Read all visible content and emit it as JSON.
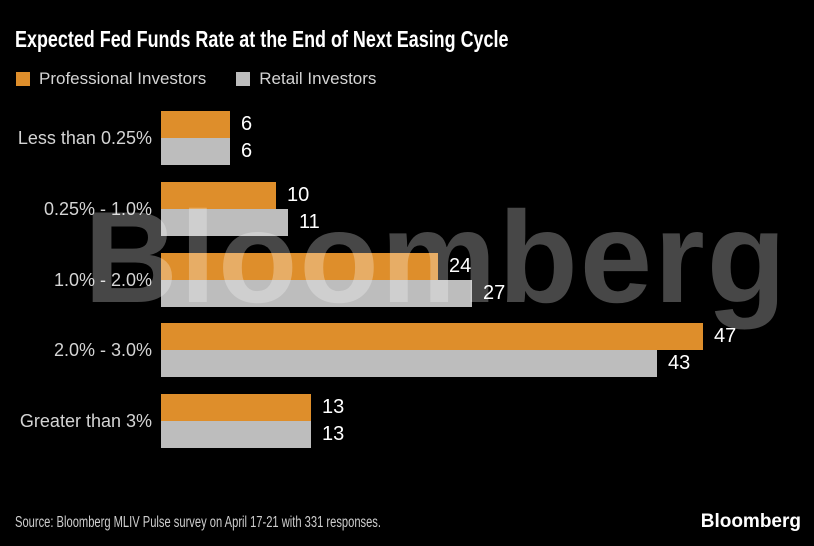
{
  "header": {
    "title": "Expected Fed Funds Rate at the End of Next Easing Cycle"
  },
  "legend": {
    "items": [
      {
        "label": "Professional Investors",
        "color": "#de8e2b"
      },
      {
        "label": "Retail Investors",
        "color": "#bdbdbd"
      }
    ]
  },
  "chart_data": {
    "type": "bar",
    "orientation": "horizontal",
    "title": "Expected Fed Funds Rate at the End of Next Easing Cycle",
    "categories": [
      "Less than 0.25%",
      "0.25% - 1.0%",
      "1.0% - 2.0%",
      "2.0% - 3.0%",
      "Greater than 3%"
    ],
    "series": [
      {
        "name": "Professional Investors",
        "color": "#de8e2b",
        "values": [
          6,
          10,
          24,
          47,
          13
        ]
      },
      {
        "name": "Retail Investors",
        "color": "#bdbdbd",
        "values": [
          6,
          11,
          27,
          43,
          13
        ]
      }
    ],
    "value_labels": true,
    "xlim": [
      0,
      50
    ],
    "grid": false,
    "legend_position": "top-left"
  },
  "watermark": {
    "text": "Bloomberg"
  },
  "footer": {
    "source": "Source: Bloomberg MLIV Pulse survey on April 17-21 with 331 responses.",
    "brand": "Bloomberg"
  },
  "colors": {
    "background": "#000000",
    "title": "#ffffff",
    "category_label": "#d4d4d4",
    "value_label": "#ffffff",
    "professional": "#de8e2b",
    "retail": "#bdbdbd",
    "watermark": "rgba(255,255,255,0.28)"
  }
}
